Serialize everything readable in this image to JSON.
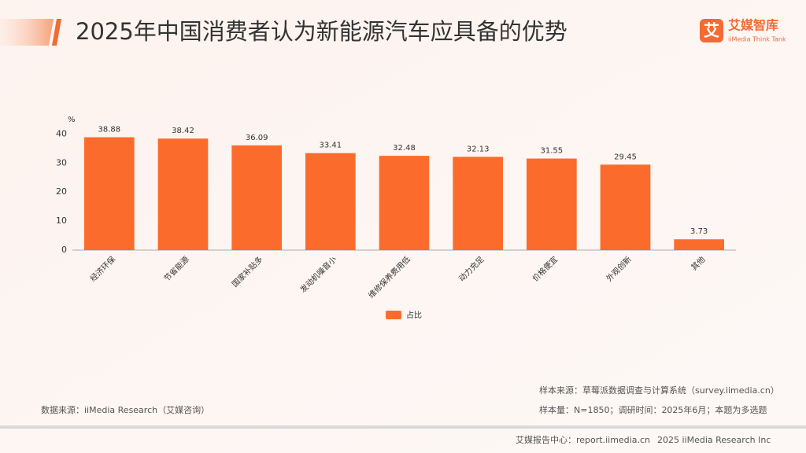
{
  "header": {
    "title": "2025年中国消费者认为新能源汽车应具备的优势",
    "logo_mark": "艾",
    "logo_name": "艾媒智库",
    "logo_sub": "iiMedia Think Tank"
  },
  "chart_data": {
    "type": "bar",
    "y_label": "%",
    "categories": [
      "经济环保",
      "节省能源",
      "国家补贴多",
      "发动机噪音小",
      "维修保养费用低",
      "动力充足",
      "价格便宜",
      "外观创新",
      "其他"
    ],
    "series": [
      {
        "name": "占比",
        "color": "#fb6c2c",
        "values": [
          38.88,
          38.42,
          36.09,
          33.41,
          32.48,
          32.13,
          31.55,
          29.45,
          3.73
        ]
      }
    ],
    "ylim": [
      0,
      42
    ],
    "yticks": [
      0,
      10,
      20,
      30,
      40
    ],
    "grid": false,
    "legend": "bottom"
  },
  "notes": {
    "source": "数据来源：iiMedia Research（艾媒咨询）",
    "sample_source": "样本来源：草莓派数据调查与计算系统（survey.iimedia.cn）",
    "sample_size": "样本量：N=1850；调研时间：2025年6月；本题为多选题"
  },
  "footer": {
    "center": "艾媒报告中心：report.iimedia.cn",
    "copyright": "2025 iiMedia Research Inc"
  }
}
